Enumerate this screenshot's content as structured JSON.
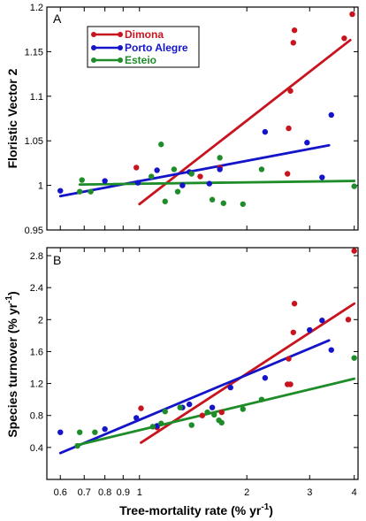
{
  "chart_data": [
    {
      "type": "scatter",
      "panel_label": "A",
      "ylabel": "Floristic Vector 2",
      "xlabel": "",
      "x_scale": "log",
      "xlim": [
        0.55,
        4.1
      ],
      "ylim": [
        0.95,
        1.2
      ],
      "yticks": [
        0.95,
        1,
        1.05,
        1.1,
        1.15,
        1.2
      ],
      "ytick_labels": [
        "0.95",
        "1",
        "1.05",
        "1.1",
        "1.15",
        "1.2"
      ],
      "xticks": [
        0.6,
        0.7,
        0.8,
        0.9,
        1,
        2,
        3,
        4
      ],
      "xtick_labels": [],
      "legend": {
        "position": "top-left",
        "entries": [
          {
            "label": "Dimona",
            "color": "#c8141e"
          },
          {
            "label": "Porto Alegre",
            "color": "#1414c8"
          },
          {
            "label": "Esteio",
            "color": "#1e8c28"
          }
        ]
      },
      "series": [
        {
          "name": "Dimona",
          "color": "#c8141e",
          "points": [
            [
              0.98,
              1.02
            ],
            [
              1.48,
              1.01
            ],
            [
              1.68,
              1.02
            ],
            [
              2.6,
              1.013
            ],
            [
              2.62,
              1.064
            ],
            [
              2.65,
              1.106
            ],
            [
              2.7,
              1.16
            ],
            [
              2.72,
              1.174
            ],
            [
              3.75,
              1.165
            ],
            [
              3.95,
              1.192
            ]
          ],
          "fit": [
            [
              1.0,
              0.979
            ],
            [
              3.9,
              1.163
            ]
          ]
        },
        {
          "name": "Porto Alegre",
          "color": "#1414c8",
          "points": [
            [
              0.6,
              0.994
            ],
            [
              0.8,
              1.005
            ],
            [
              0.99,
              1.003
            ],
            [
              1.12,
              1.017
            ],
            [
              1.32,
              1.0
            ],
            [
              1.38,
              1.015
            ],
            [
              1.57,
              1.002
            ],
            [
              1.68,
              1.018
            ],
            [
              2.25,
              1.06
            ],
            [
              2.95,
              1.048
            ],
            [
              3.25,
              1.009
            ],
            [
              3.45,
              1.079
            ]
          ],
          "fit": [
            [
              0.6,
              0.988
            ],
            [
              3.4,
              1.045
            ]
          ]
        },
        {
          "name": "Esteio",
          "color": "#1e8c28",
          "points": [
            [
              0.68,
              0.993
            ],
            [
              0.69,
              1.006
            ],
            [
              0.73,
              0.993
            ],
            [
              1.08,
              1.01
            ],
            [
              1.15,
              1.046
            ],
            [
              1.18,
              0.982
            ],
            [
              1.25,
              1.018
            ],
            [
              1.28,
              0.993
            ],
            [
              1.4,
              1.013
            ],
            [
              1.6,
              0.984
            ],
            [
              1.68,
              1.031
            ],
            [
              1.72,
              0.98
            ],
            [
              1.95,
              0.979
            ],
            [
              2.2,
              1.018
            ],
            [
              4.0,
              0.999
            ]
          ],
          "fit": [
            [
              0.68,
              1.001
            ],
            [
              4.0,
              1.005
            ]
          ]
        }
      ]
    },
    {
      "type": "scatter",
      "panel_label": "B",
      "ylabel": "Species turnover (% yr",
      "ylabel_sup": "-1",
      "ylabel_close": ")",
      "xlabel": "Tree-mortality rate (% yr",
      "xlabel_sup": "-1",
      "xlabel_close": ")",
      "x_scale": "log",
      "xlim": [
        0.55,
        4.1
      ],
      "ylim": [
        0.0,
        2.9
      ],
      "yticks": [
        0.4,
        0.8,
        1.2,
        1.6,
        2,
        2.4,
        2.8
      ],
      "ytick_labels": [
        "0.4",
        "0.8",
        "1.2",
        "1.6",
        "2",
        "2.4",
        "2.8"
      ],
      "xticks": [
        0.6,
        0.7,
        0.8,
        0.9,
        1,
        2,
        3,
        4
      ],
      "xtick_labels": [
        "0.6",
        "0.7",
        "0.8",
        "0.9",
        "1",
        "2",
        "3",
        "4"
      ],
      "series": [
        {
          "name": "Dimona",
          "color": "#c8141e",
          "points": [
            [
              1.01,
              0.89
            ],
            [
              1.12,
              0.65
            ],
            [
              1.5,
              0.8
            ],
            [
              1.7,
              0.84
            ],
            [
              2.6,
              1.19
            ],
            [
              2.62,
              1.51
            ],
            [
              2.65,
              1.19
            ],
            [
              2.7,
              1.84
            ],
            [
              2.72,
              2.2
            ],
            [
              3.85,
              2.0
            ],
            [
              4.0,
              2.86
            ]
          ],
          "fit": [
            [
              1.01,
              0.46
            ],
            [
              4.0,
              2.2
            ]
          ]
        },
        {
          "name": "Porto Alegre",
          "color": "#1414c8",
          "points": [
            [
              0.6,
              0.59
            ],
            [
              0.8,
              0.63
            ],
            [
              0.98,
              0.77
            ],
            [
              1.12,
              0.67
            ],
            [
              1.32,
              0.9
            ],
            [
              1.38,
              0.94
            ],
            [
              1.6,
              0.9
            ],
            [
              1.8,
              1.15
            ],
            [
              2.25,
              1.27
            ],
            [
              3.0,
              1.87
            ],
            [
              3.25,
              1.99
            ],
            [
              3.45,
              1.62
            ]
          ],
          "fit": [
            [
              0.6,
              0.33
            ],
            [
              3.4,
              1.74
            ]
          ]
        },
        {
          "name": "Esteio",
          "color": "#1e8c28",
          "points": [
            [
              0.67,
              0.42
            ],
            [
              0.68,
              0.59
            ],
            [
              0.75,
              0.59
            ],
            [
              1.09,
              0.66
            ],
            [
              1.15,
              0.7
            ],
            [
              1.18,
              0.85
            ],
            [
              1.3,
              0.9
            ],
            [
              1.4,
              0.68
            ],
            [
              1.55,
              0.84
            ],
            [
              1.62,
              0.81
            ],
            [
              1.67,
              0.74
            ],
            [
              1.7,
              0.71
            ],
            [
              1.95,
              0.88
            ],
            [
              2.2,
              1.0
            ],
            [
              4.0,
              1.52
            ]
          ],
          "fit": [
            [
              0.67,
              0.43
            ],
            [
              4.0,
              1.26
            ]
          ]
        }
      ]
    }
  ]
}
